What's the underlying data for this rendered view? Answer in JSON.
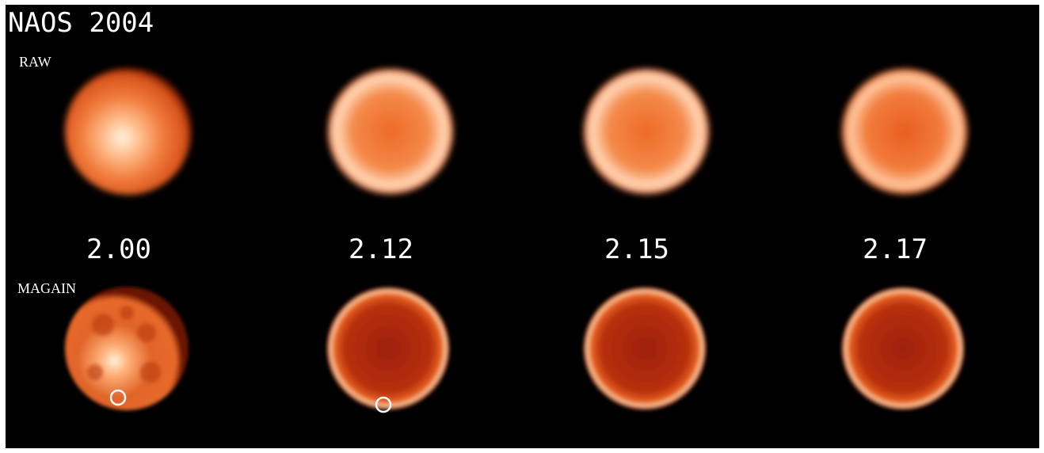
{
  "title": "NAOS 2004",
  "rows": [
    {
      "label": "RAW"
    },
    {
      "label": "MAGAIN"
    }
  ],
  "wavelengths": [
    "2.00",
    "2.12",
    "2.15",
    "2.17"
  ]
}
